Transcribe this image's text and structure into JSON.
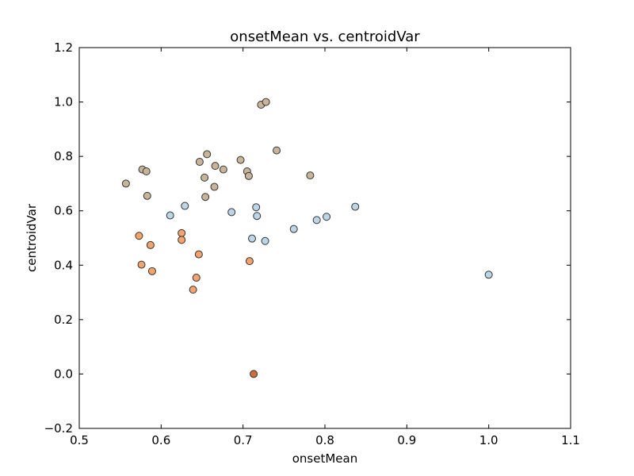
{
  "chart_data": {
    "type": "scatter",
    "title": "onsetMean vs. centroidVar",
    "xlabel": "onsetMean",
    "ylabel": "centroidVar",
    "xlim": [
      0.5,
      1.1
    ],
    "ylim": [
      -0.2,
      1.2
    ],
    "xticks": [
      "0.5",
      "0.6",
      "0.7",
      "0.8",
      "0.9",
      "1.0",
      "1.1"
    ],
    "yticks": [
      "−0.2",
      "0.0",
      "0.2",
      "0.4",
      "0.6",
      "0.8",
      "1.0",
      "1.2"
    ],
    "grid": false,
    "legend": "none",
    "colors": {
      "tan": "#c8b49a",
      "blue": "#bcd6e8",
      "orange": "#f3a36b",
      "dark_orange": "#c8703e"
    },
    "points": [
      {
        "x": 0.557,
        "y": 0.7,
        "color": "tan"
      },
      {
        "x": 0.577,
        "y": 0.752,
        "color": "tan"
      },
      {
        "x": 0.582,
        "y": 0.745,
        "color": "tan"
      },
      {
        "x": 0.583,
        "y": 0.655,
        "color": "tan"
      },
      {
        "x": 0.647,
        "y": 0.78,
        "color": "tan"
      },
      {
        "x": 0.653,
        "y": 0.722,
        "color": "tan"
      },
      {
        "x": 0.656,
        "y": 0.808,
        "color": "tan"
      },
      {
        "x": 0.654,
        "y": 0.651,
        "color": "tan"
      },
      {
        "x": 0.666,
        "y": 0.765,
        "color": "tan"
      },
      {
        "x": 0.665,
        "y": 0.688,
        "color": "tan"
      },
      {
        "x": 0.676,
        "y": 0.752,
        "color": "tan"
      },
      {
        "x": 0.697,
        "y": 0.787,
        "color": "tan"
      },
      {
        "x": 0.705,
        "y": 0.745,
        "color": "tan"
      },
      {
        "x": 0.707,
        "y": 0.728,
        "color": "tan"
      },
      {
        "x": 0.722,
        "y": 0.99,
        "color": "tan"
      },
      {
        "x": 0.728,
        "y": 1.0,
        "color": "tan"
      },
      {
        "x": 0.741,
        "y": 0.822,
        "color": "tan"
      },
      {
        "x": 0.782,
        "y": 0.73,
        "color": "tan"
      },
      {
        "x": 0.611,
        "y": 0.583,
        "color": "blue"
      },
      {
        "x": 0.629,
        "y": 0.618,
        "color": "blue"
      },
      {
        "x": 0.686,
        "y": 0.595,
        "color": "blue"
      },
      {
        "x": 0.711,
        "y": 0.498,
        "color": "blue"
      },
      {
        "x": 0.716,
        "y": 0.613,
        "color": "blue"
      },
      {
        "x": 0.717,
        "y": 0.581,
        "color": "blue"
      },
      {
        "x": 0.727,
        "y": 0.489,
        "color": "blue"
      },
      {
        "x": 0.762,
        "y": 0.533,
        "color": "blue"
      },
      {
        "x": 0.79,
        "y": 0.566,
        "color": "blue"
      },
      {
        "x": 0.802,
        "y": 0.578,
        "color": "blue"
      },
      {
        "x": 0.837,
        "y": 0.615,
        "color": "blue"
      },
      {
        "x": 1.0,
        "y": 0.365,
        "color": "blue"
      },
      {
        "x": 0.573,
        "y": 0.508,
        "color": "orange"
      },
      {
        "x": 0.576,
        "y": 0.402,
        "color": "orange"
      },
      {
        "x": 0.587,
        "y": 0.474,
        "color": "orange"
      },
      {
        "x": 0.589,
        "y": 0.378,
        "color": "orange"
      },
      {
        "x": 0.625,
        "y": 0.518,
        "color": "orange"
      },
      {
        "x": 0.625,
        "y": 0.493,
        "color": "orange"
      },
      {
        "x": 0.639,
        "y": 0.31,
        "color": "orange"
      },
      {
        "x": 0.643,
        "y": 0.354,
        "color": "orange"
      },
      {
        "x": 0.646,
        "y": 0.44,
        "color": "orange"
      },
      {
        "x": 0.708,
        "y": 0.415,
        "color": "orange"
      },
      {
        "x": 0.713,
        "y": 0.0,
        "color": "dark_orange"
      }
    ]
  }
}
